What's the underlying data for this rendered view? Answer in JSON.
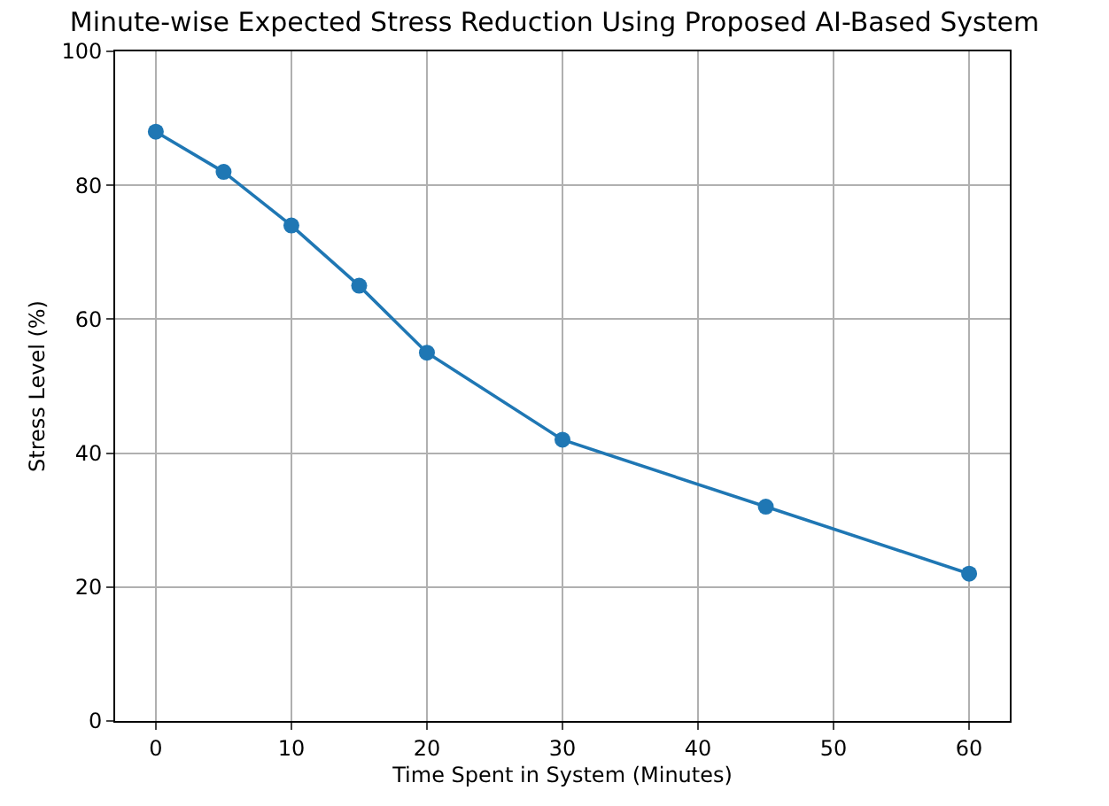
{
  "chart_data": {
    "type": "line",
    "title": "Minute-wise Expected Stress Reduction Using Proposed AI-Based System",
    "xlabel": "Time Spent in System (Minutes)",
    "ylabel": "Stress Level (%)",
    "x": [
      0,
      5,
      10,
      15,
      20,
      30,
      45,
      60
    ],
    "series": [
      {
        "color": "#1f77b4",
        "values": [
          88,
          82,
          74,
          65,
          55,
          42,
          32,
          22
        ]
      }
    ],
    "xlim": [
      -3,
      63
    ],
    "xticks": [
      0,
      10,
      20,
      30,
      40,
      50,
      60
    ],
    "ylim": [
      0,
      100
    ],
    "yticks": [
      0,
      20,
      40,
      60,
      80,
      100
    ],
    "grid": true,
    "marker": "circle",
    "line_style": "solid"
  }
}
